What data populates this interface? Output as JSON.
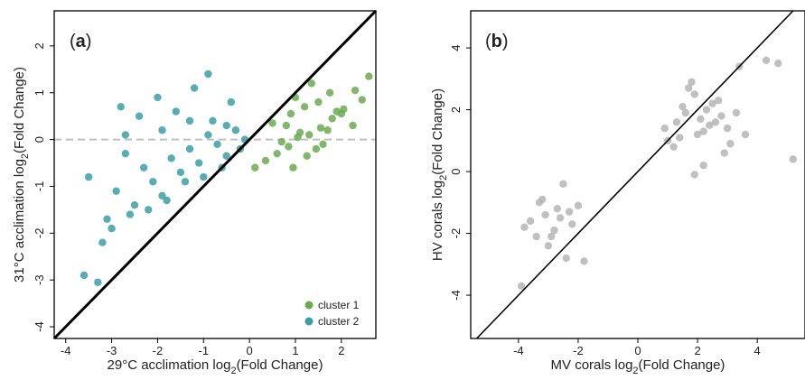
{
  "chart_data": [
    {
      "type": "scatter",
      "panel_label": "a",
      "title": "",
      "xlabel": "29°C acclimation log2(Fold Change)",
      "ylabel": "31°C acclimation log2(Fold Change)",
      "xlabel_parts": [
        "29°C acclimation log",
        "2",
        "(Fold Change)"
      ],
      "ylabel_parts": [
        "31°C acclimation log",
        "2",
        "(Fold Change)"
      ],
      "xlim": [
        -4.25,
        2.75
      ],
      "ylim": [
        -4.25,
        2.75
      ],
      "xticks": [
        -4,
        -3,
        -2,
        -1,
        0,
        1,
        2
      ],
      "yticks": [
        -4,
        -3,
        -2,
        -1,
        0,
        1,
        2
      ],
      "grid": false,
      "reference_lines": [
        "y = x (black)",
        "y = 0 (dashed grey)"
      ],
      "legend_position": "bottom-right",
      "series": [
        {
          "name": "cluster 1",
          "color": "#6aaa50",
          "x": [
            0.12,
            0.35,
            0.6,
            0.85,
            1.05,
            1.3,
            1.55,
            1.8,
            2.05,
            2.3,
            2.6,
            0.5,
            0.9,
            1.2,
            1.5,
            1.75,
            2.0,
            2.25,
            0.7,
            1.1,
            1.45,
            1.9,
            0.95,
            1.6,
            2.45,
            1.35,
            0.8,
            1.0,
            1.25,
            1.7
          ],
          "y": [
            -0.6,
            -0.45,
            -0.3,
            -0.15,
            0.05,
            0.1,
            0.25,
            0.45,
            0.65,
            1.05,
            1.35,
            0.35,
            0.55,
            0.7,
            0.8,
            1.0,
            0.55,
            0.3,
            -0.05,
            0.15,
            -0.2,
            0.6,
            -0.6,
            -0.1,
            0.85,
            1.2,
            0.3,
            0.9,
            -0.35,
            0.2
          ]
        },
        {
          "name": "cluster 2",
          "color": "#3a9fa7",
          "x": [
            -3.6,
            -3.3,
            -3.5,
            -3.2,
            -2.9,
            -2.7,
            -2.5,
            -2.3,
            -2.1,
            -1.9,
            -1.7,
            -1.5,
            -1.3,
            -1.1,
            -0.9,
            -0.7,
            -0.5,
            -0.3,
            -0.1,
            -2.8,
            -2.4,
            -2.0,
            -1.6,
            -1.2,
            -0.8,
            -0.4,
            -2.6,
            -2.2,
            -1.8,
            -1.4,
            -1.0,
            -0.6,
            -0.2,
            -3.0,
            -1.9,
            -1.3,
            -0.9,
            -2.7,
            -3.1,
            -0.5
          ],
          "y": [
            -2.9,
            -3.05,
            -0.8,
            -2.2,
            -1.1,
            -0.3,
            -1.4,
            -0.6,
            -0.9,
            -1.2,
            -0.4,
            -0.7,
            -0.2,
            -0.5,
            0.1,
            -0.1,
            0.3,
            0.2,
            0.0,
            0.7,
            0.5,
            0.9,
            0.6,
            1.1,
            0.4,
            0.8,
            -1.6,
            -1.5,
            -1.3,
            -0.9,
            -0.8,
            -0.6,
            -0.2,
            -1.9,
            0.2,
            0.4,
            1.4,
            0.1,
            -1.7,
            -0.35
          ]
        }
      ]
    },
    {
      "type": "scatter",
      "panel_label": "b",
      "title": "",
      "xlabel": "MV corals log2(Fold Change)",
      "ylabel": "HV corals log2(Fold Change)",
      "xlabel_parts": [
        "MV corals log",
        "2",
        "(Fold Change)"
      ],
      "ylabel_parts": [
        "HV corals log",
        "2",
        "(Fold Change)"
      ],
      "xlim": [
        -5.6,
        5.6
      ],
      "ylim": [
        -5.4,
        5.2
      ],
      "xticks": [
        -4,
        -2,
        0,
        2,
        4
      ],
      "yticks": [
        -4,
        -2,
        0,
        2,
        4
      ],
      "grid": false,
      "reference_lines": [
        "y = x (black)"
      ],
      "series": [
        {
          "name": "",
          "color": "#b5b5b5",
          "x": [
            -3.9,
            -3.4,
            -3.1,
            -2.8,
            -2.5,
            -2.3,
            -3.6,
            -3.0,
            -2.7,
            -2.2,
            -3.3,
            -2.9,
            -2.6,
            -3.8,
            -2.4,
            -1.8,
            -3.2,
            -2.0,
            1.0,
            1.3,
            1.6,
            1.9,
            2.2,
            2.5,
            2.8,
            3.1,
            1.4,
            1.8,
            2.1,
            2.4,
            2.7,
            3.0,
            3.4,
            1.2,
            1.7,
            2.0,
            2.3,
            2.6,
            3.3,
            4.3,
            4.7,
            5.2,
            1.9,
            2.2,
            1.5,
            0.9,
            2.9,
            3.6
          ],
          "y": [
            -3.7,
            -2.1,
            -1.4,
            -1.9,
            -0.4,
            -1.3,
            -1.6,
            -2.4,
            -1.2,
            -1.7,
            -1.0,
            -2.1,
            -1.5,
            -1.8,
            -2.8,
            -2.9,
            -0.9,
            -1.1,
            1.0,
            1.6,
            1.9,
            2.5,
            1.3,
            2.2,
            1.8,
            0.9,
            1.1,
            2.9,
            1.7,
            1.5,
            2.3,
            1.4,
            3.4,
            0.8,
            2.7,
            1.2,
            2.0,
            1.6,
            1.9,
            3.6,
            3.5,
            0.4,
            -0.1,
            0.2,
            2.1,
            1.4,
            0.6,
            1.2
          ]
        }
      ]
    }
  ]
}
